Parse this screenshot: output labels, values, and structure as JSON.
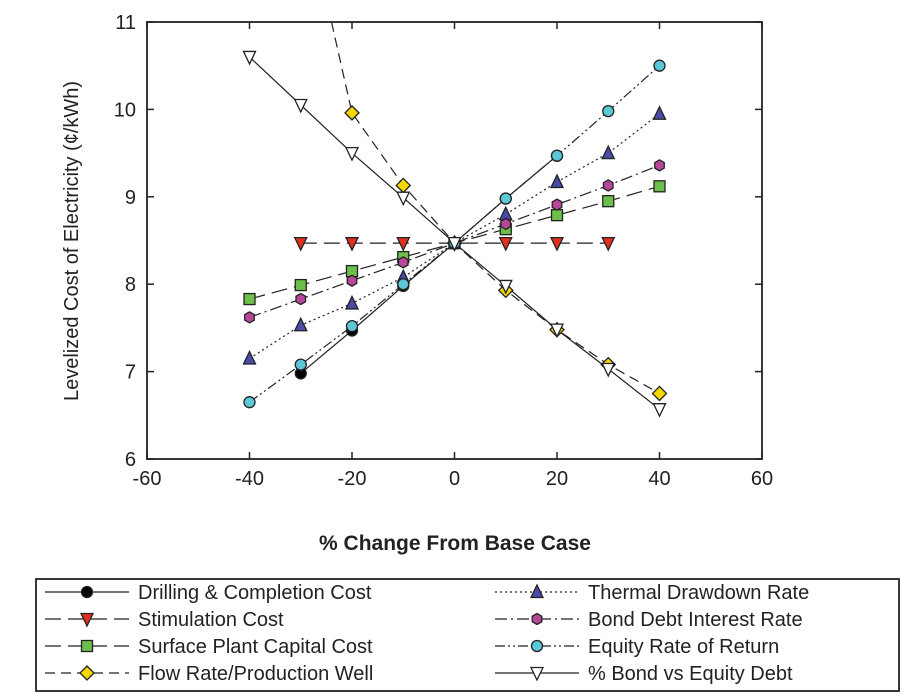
{
  "chart_data": {
    "type": "line",
    "title": "",
    "xlabel": "% Change From Base Case",
    "ylabel": "Levelized Cost of Electricity (¢/kWh)",
    "xlim": [
      -60,
      60
    ],
    "ylim": [
      6,
      11
    ],
    "xticks": [
      -60,
      -40,
      -20,
      0,
      20,
      40,
      60
    ],
    "yticks": [
      6,
      7,
      8,
      9,
      10,
      11
    ],
    "xtick_labels": [
      "-60",
      "-40",
      "-20",
      "0",
      "20",
      "40",
      "60"
    ],
    "ytick_labels": [
      "6",
      "7",
      "8",
      "9",
      "10",
      "11"
    ],
    "grid": false,
    "legend_position": "bottom",
    "series": [
      {
        "name": "Drilling & Completion Cost",
        "color": "#000000",
        "marker": "circle",
        "dash": "solid",
        "x": [
          -30,
          -20,
          -10,
          0,
          10,
          20
        ],
        "y": [
          6.98,
          7.47,
          7.98,
          8.47,
          8.98,
          9.47
        ]
      },
      {
        "name": "Stimulation Cost",
        "color": "#e03020",
        "marker": "triangle-down",
        "dash": "longdash",
        "x": [
          -30,
          -20,
          -10,
          0,
          10,
          20,
          30
        ],
        "y": [
          8.47,
          8.47,
          8.47,
          8.47,
          8.47,
          8.47,
          8.47
        ]
      },
      {
        "name": "Surface Plant Capital Cost",
        "color": "#6cbf4a",
        "marker": "square",
        "dash": "longdash",
        "x": [
          -40,
          -30,
          -20,
          -10,
          0,
          10,
          20,
          30,
          40
        ],
        "y": [
          7.83,
          7.99,
          8.15,
          8.31,
          8.47,
          8.63,
          8.79,
          8.95,
          9.12
        ]
      },
      {
        "name": "Flow Rate/Production Well",
        "color": "#f5d800",
        "marker": "diamond",
        "dash": "dash",
        "x": [
          -24,
          -20,
          -10,
          0,
          10,
          20,
          30,
          40
        ],
        "y": [
          11.0,
          9.96,
          9.13,
          8.47,
          7.93,
          7.48,
          7.08,
          6.75
        ]
      },
      {
        "name": "Thermal Drawdown Rate",
        "color": "#4a4aa8",
        "marker": "triangle-up",
        "dash": "dot",
        "x": [
          -40,
          -30,
          -20,
          -10,
          0,
          10,
          20,
          30,
          40
        ],
        "y": [
          7.15,
          7.53,
          7.78,
          8.08,
          8.47,
          8.8,
          9.17,
          9.5,
          9.95
        ]
      },
      {
        "name": "Bond Debt Interest Rate",
        "color": "#b8479a",
        "marker": "hexagon",
        "dash": "dashdot",
        "x": [
          -40,
          -30,
          -20,
          -10,
          0,
          10,
          20,
          30,
          40
        ],
        "y": [
          7.62,
          7.83,
          8.04,
          8.25,
          8.47,
          8.69,
          8.91,
          9.13,
          9.36
        ]
      },
      {
        "name": "Equity Rate of Return",
        "color": "#5bc8d8",
        "marker": "circle",
        "dash": "dashdotdot",
        "x": [
          -40,
          -30,
          -20,
          -10,
          0,
          10,
          20,
          30,
          40
        ],
        "y": [
          6.65,
          7.08,
          7.52,
          8.0,
          8.47,
          8.98,
          9.47,
          9.98,
          10.5
        ]
      },
      {
        "name": "% Bond vs Equity Debt",
        "color": "#ffffff",
        "marker": "triangle-down",
        "dash": "solid",
        "x": [
          -40,
          -30,
          -20,
          -10,
          0,
          10,
          20,
          30,
          40
        ],
        "y": [
          10.6,
          10.05,
          9.5,
          8.99,
          8.47,
          7.98,
          7.48,
          7.03,
          6.57
        ]
      }
    ]
  }
}
